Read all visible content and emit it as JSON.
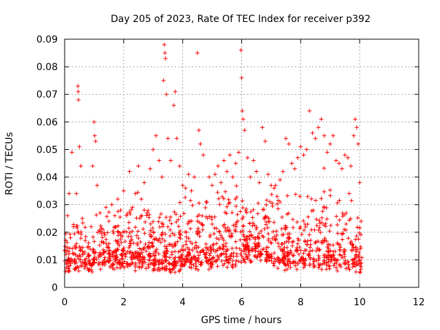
{
  "chart_data": {
    "type": "scatter",
    "title": "Day 205 of 2023, Rate Of TEC Index for receiver p392",
    "xlabel": "GPS time / hours",
    "ylabel": "ROTI / TECUs",
    "xlim": [
      0,
      12
    ],
    "ylim": [
      0,
      0.09
    ],
    "xticks": [
      0,
      2,
      4,
      6,
      8,
      10,
      12
    ],
    "yticks": [
      0,
      0.01,
      0.02,
      0.03,
      0.04,
      0.05,
      0.06,
      0.07,
      0.08,
      0.09
    ],
    "xtick_labels": [
      "0",
      "2",
      "4",
      "6",
      "8",
      "10",
      "12"
    ],
    "ytick_labels": [
      "0",
      "0.01",
      "0.02",
      "0.03",
      "0.04",
      "0.05",
      "0.06",
      "0.07",
      "0.08",
      "0.09"
    ],
    "grid": true,
    "marker": "+",
    "marker_color": "#ff0000",
    "series": [
      {
        "name": "ROTI",
        "points": [
          [
            0.05,
            0.012
          ],
          [
            0.1,
            0.026
          ],
          [
            0.15,
            0.034
          ],
          [
            0.2,
            0.018
          ],
          [
            0.25,
            0.049
          ],
          [
            0.3,
            0.022
          ],
          [
            0.35,
            0.015
          ],
          [
            0.4,
            0.034
          ],
          [
            0.45,
            0.073
          ],
          [
            0.46,
            0.071
          ],
          [
            0.47,
            0.068
          ],
          [
            0.5,
            0.051
          ],
          [
            0.55,
            0.044
          ],
          [
            0.6,
            0.025
          ],
          [
            0.7,
            0.017
          ],
          [
            0.8,
            0.012
          ],
          [
            0.9,
            0.022
          ],
          [
            0.95,
            0.044
          ],
          [
            1.0,
            0.06
          ],
          [
            1.02,
            0.055
          ],
          [
            1.05,
            0.053
          ],
          [
            1.1,
            0.037
          ],
          [
            1.2,
            0.027
          ],
          [
            1.3,
            0.021
          ],
          [
            1.4,
            0.029
          ],
          [
            1.5,
            0.024
          ],
          [
            1.6,
            0.03
          ],
          [
            1.7,
            0.026
          ],
          [
            1.8,
            0.032
          ],
          [
            1.9,
            0.028
          ],
          [
            2.0,
            0.035
          ],
          [
            2.1,
            0.026
          ],
          [
            2.2,
            0.042
          ],
          [
            2.3,
            0.029
          ],
          [
            2.4,
            0.034
          ],
          [
            2.5,
            0.044
          ],
          [
            2.6,
            0.032
          ],
          [
            2.7,
            0.038
          ],
          [
            2.8,
            0.027
          ],
          [
            2.9,
            0.043
          ],
          [
            3.0,
            0.05
          ],
          [
            3.1,
            0.055
          ],
          [
            3.2,
            0.046
          ],
          [
            3.3,
            0.04
          ],
          [
            3.35,
            0.075
          ],
          [
            3.38,
            0.088
          ],
          [
            3.4,
            0.085
          ],
          [
            3.42,
            0.083
          ],
          [
            3.45,
            0.07
          ],
          [
            3.5,
            0.054
          ],
          [
            3.6,
            0.046
          ],
          [
            3.7,
            0.066
          ],
          [
            3.75,
            0.071
          ],
          [
            3.8,
            0.054
          ],
          [
            3.9,
            0.044
          ],
          [
            4.0,
            0.037
          ],
          [
            4.1,
            0.036
          ],
          [
            4.2,
            0.041
          ],
          [
            4.3,
            0.035
          ],
          [
            4.4,
            0.04
          ],
          [
            4.5,
            0.085
          ],
          [
            4.55,
            0.057
          ],
          [
            4.6,
            0.052
          ],
          [
            4.7,
            0.048
          ],
          [
            4.8,
            0.031
          ],
          [
            4.9,
            0.04
          ],
          [
            5.0,
            0.037
          ],
          [
            5.1,
            0.041
          ],
          [
            5.2,
            0.044
          ],
          [
            5.3,
            0.038
          ],
          [
            5.4,
            0.046
          ],
          [
            5.5,
            0.042
          ],
          [
            5.6,
            0.048
          ],
          [
            5.7,
            0.04
          ],
          [
            5.8,
            0.045
          ],
          [
            5.9,
            0.049
          ],
          [
            5.98,
            0.086
          ],
          [
            6.0,
            0.076
          ],
          [
            6.02,
            0.064
          ],
          [
            6.05,
            0.061
          ],
          [
            6.1,
            0.057
          ],
          [
            6.2,
            0.047
          ],
          [
            6.3,
            0.04
          ],
          [
            6.4,
            0.046
          ],
          [
            6.5,
            0.042
          ],
          [
            6.6,
            0.038
          ],
          [
            6.7,
            0.058
          ],
          [
            6.8,
            0.053
          ],
          [
            6.9,
            0.041
          ],
          [
            7.0,
            0.037
          ],
          [
            7.1,
            0.036
          ],
          [
            7.2,
            0.033
          ],
          [
            7.3,
            0.039
          ],
          [
            7.4,
            0.042
          ],
          [
            7.5,
            0.054
          ],
          [
            7.6,
            0.052
          ],
          [
            7.7,
            0.045
          ],
          [
            7.8,
            0.043
          ],
          [
            7.9,
            0.047
          ],
          [
            8.0,
            0.051
          ],
          [
            8.1,
            0.048
          ],
          [
            8.2,
            0.05
          ],
          [
            8.3,
            0.064
          ],
          [
            8.4,
            0.056
          ],
          [
            8.5,
            0.054
          ],
          [
            8.6,
            0.058
          ],
          [
            8.7,
            0.061
          ],
          [
            8.8,
            0.055
          ],
          [
            8.9,
            0.049
          ],
          [
            9.0,
            0.052
          ],
          [
            9.1,
            0.055
          ],
          [
            9.2,
            0.046
          ],
          [
            9.3,
            0.045
          ],
          [
            9.4,
            0.043
          ],
          [
            9.5,
            0.048
          ],
          [
            9.6,
            0.047
          ],
          [
            9.7,
            0.044
          ],
          [
            9.8,
            0.055
          ],
          [
            9.85,
            0.061
          ],
          [
            9.9,
            0.058
          ],
          [
            9.95,
            0.052
          ],
          [
            10.0,
            0.038
          ],
          [
            10.05,
            0.024
          ]
        ],
        "band": {
          "x_range": [
            0.0,
            10.08
          ],
          "segments": [
            {
              "x": [
                0.0,
                1.0
              ],
              "y_low": 0.005,
              "y_high": 0.024
            },
            {
              "x": [
                1.0,
                2.0
              ],
              "y_low": 0.006,
              "y_high": 0.027
            },
            {
              "x": [
                2.0,
                3.0
              ],
              "y_low": 0.006,
              "y_high": 0.03
            },
            {
              "x": [
                3.0,
                4.0
              ],
              "y_low": 0.005,
              "y_high": 0.03
            },
            {
              "x": [
                4.0,
                5.0
              ],
              "y_low": 0.006,
              "y_high": 0.032
            },
            {
              "x": [
                5.0,
                6.0
              ],
              "y_low": 0.007,
              "y_high": 0.037
            },
            {
              "x": [
                6.0,
                7.0
              ],
              "y_low": 0.008,
              "y_high": 0.034
            },
            {
              "x": [
                7.0,
                8.0
              ],
              "y_low": 0.006,
              "y_high": 0.033
            },
            {
              "x": [
                8.0,
                9.0
              ],
              "y_low": 0.006,
              "y_high": 0.04
            },
            {
              "x": [
                9.0,
                10.08
              ],
              "y_low": 0.005,
              "y_high": 0.036
            }
          ],
          "approx_count": 1400
        }
      }
    ]
  }
}
